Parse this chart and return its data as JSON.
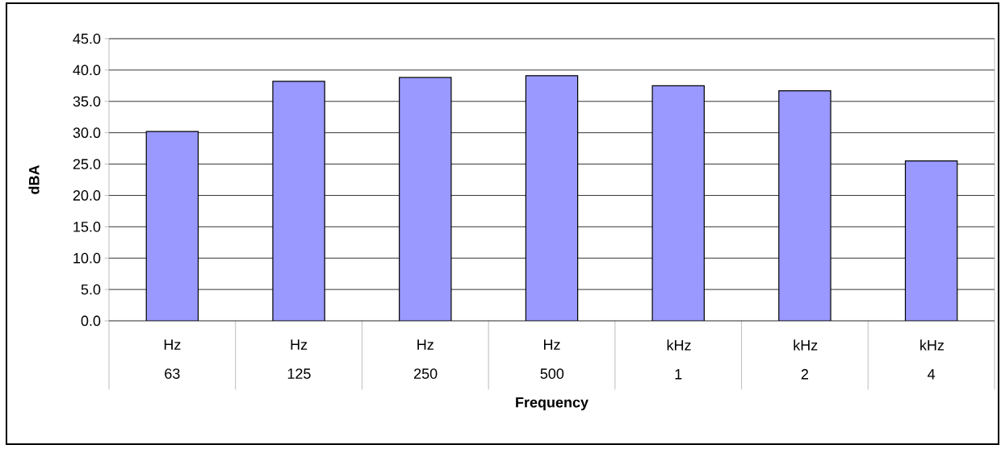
{
  "chart_data": {
    "type": "bar",
    "xlabel": "Frequency",
    "ylabel": "dBA",
    "categories": [
      "Hz 63",
      "Hz 125",
      "Hz 250",
      "Hz 500",
      "kHz 1",
      "kHz 2",
      "kHz 4"
    ],
    "values": [
      30.2,
      38.2,
      38.8,
      39.1,
      37.5,
      36.7,
      25.5
    ],
    "color": "#9999ff",
    "ylim": [
      0,
      45
    ],
    "yticks": [
      {
        "value": 0,
        "label": "0.0"
      },
      {
        "value": 5,
        "label": "5.0"
      },
      {
        "value": 10,
        "label": "10.0"
      },
      {
        "value": 15,
        "label": "15.0"
      },
      {
        "value": 20,
        "label": "20.0"
      },
      {
        "value": 25,
        "label": "25.0"
      },
      {
        "value": 30,
        "label": "30.0"
      },
      {
        "value": 35,
        "label": "35.0"
      },
      {
        "value": 40,
        "label": "40.0"
      },
      {
        "value": 45,
        "label": "45.0"
      }
    ],
    "grid": "y"
  }
}
